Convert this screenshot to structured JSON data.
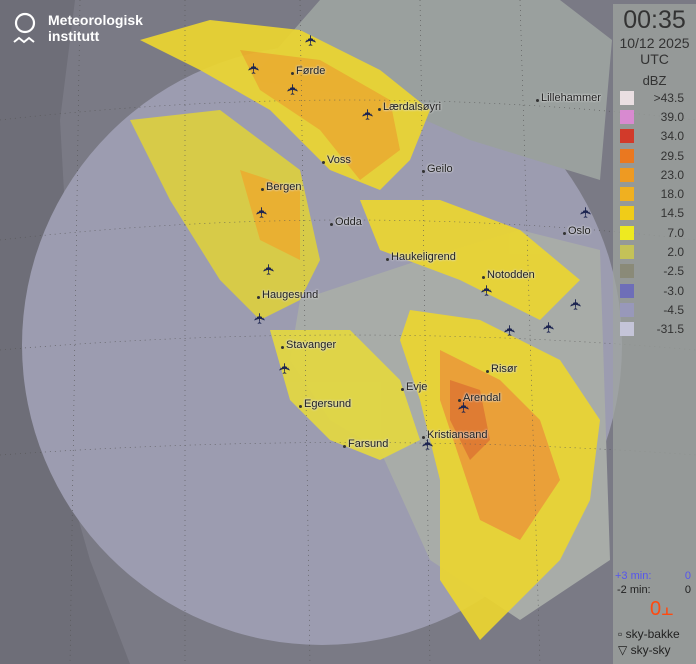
{
  "brand": {
    "line1": "Meteorologisk",
    "line2": "institutt"
  },
  "time": "00:35",
  "date": "10/12 2025",
  "timezone": "UTC",
  "legend": {
    "unit": "dBZ",
    "items": [
      {
        "label": ">43.5",
        "color": "#eadfe2"
      },
      {
        "label": "39.0",
        "color": "#d88ad0"
      },
      {
        "label": "34.0",
        "color": "#d23a2a"
      },
      {
        "label": "29.5",
        "color": "#ea7820"
      },
      {
        "label": "23.0",
        "color": "#ee9a22"
      },
      {
        "label": "18.0",
        "color": "#f0b020"
      },
      {
        "label": "14.5",
        "color": "#f0cc18"
      },
      {
        "label": "7.0",
        "color": "#eeea20"
      },
      {
        "label": "2.0",
        "color": "#c4c258"
      },
      {
        "label": "-2.5",
        "color": "#8a8a78"
      },
      {
        "label": "-3.0",
        "color": "#6e6eb8"
      },
      {
        "label": "-4.5",
        "color": "#9898ba"
      },
      {
        "label": "-31.5",
        "color": "#c4c4d8"
      }
    ]
  },
  "lightning": {
    "plus3_label": "+3 min:",
    "plus3_value": "0",
    "minus2_label": "-2 min:",
    "minus2_value": "0",
    "count": "0",
    "ground_label": "sky-bakke",
    "cloud_label": "sky-sky"
  },
  "cities": [
    "Førde",
    "Lærdalsøyri",
    "Voss",
    "Geilo",
    "Lillehammer",
    "Bergen",
    "Odda",
    "Oslo",
    "Haukeligrend",
    "Notodden",
    "Haugesund",
    "Stavanger",
    "Risør",
    "Evje",
    "Arendal",
    "Egersund",
    "Kristiansand",
    "Farsund"
  ],
  "icons": {
    "airport": "airplane-icon",
    "logo": "met-logo"
  }
}
